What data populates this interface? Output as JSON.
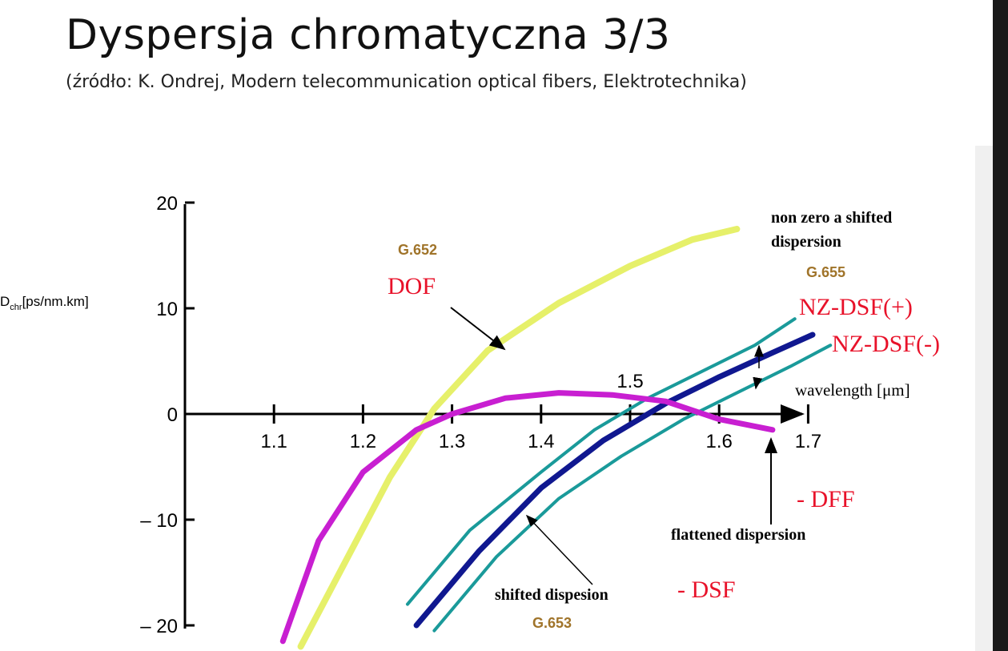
{
  "slide": {
    "title": "Dyspersja chromatyczna 3/3",
    "subtitle": "(źródło: K. Ondrej, Modern telecommunication optical fibers, Elektrotechnika)"
  },
  "chart_data": {
    "type": "line",
    "ylabel_main": "D",
    "ylabel_sub": "chr",
    "ylabel_unit": "[ps/nm.km]",
    "xlabel": "wavelength [μm]",
    "xlim": [
      1.0,
      1.7
    ],
    "ylim": [
      -20,
      20
    ],
    "x_ticks": [
      "1.1",
      "1.2",
      "1.3",
      "1.4",
      "1.6",
      "1.7"
    ],
    "x_tick_above": "1.5",
    "y_ticks": [
      "20",
      "10",
      "0",
      "– 10",
      "– 20"
    ],
    "series": [
      {
        "id": "dof",
        "color": "#e6f06a",
        "x": [
          1.13,
          1.18,
          1.23,
          1.28,
          1.34,
          1.42,
          1.5,
          1.57,
          1.62
        ],
        "y": [
          -22,
          -14,
          -6,
          0.5,
          6,
          10.5,
          14,
          16.5,
          17.5
        ]
      },
      {
        "id": "dff",
        "color": "#c81fd1",
        "x": [
          1.11,
          1.15,
          1.2,
          1.26,
          1.3,
          1.36,
          1.42,
          1.48,
          1.54,
          1.6,
          1.66
        ],
        "y": [
          -21.5,
          -12,
          -5.5,
          -1.5,
          0,
          1.5,
          2,
          1.8,
          1.2,
          -0.5,
          -1.5
        ]
      },
      {
        "id": "nzdsf-plus",
        "color": "#1a9a9a",
        "x": [
          1.25,
          1.32,
          1.4,
          1.46,
          1.52,
          1.58,
          1.64,
          1.685
        ],
        "y": [
          -18,
          -11,
          -5.5,
          -1.5,
          1.5,
          4,
          6.5,
          9
        ]
      },
      {
        "id": "dsf",
        "color": "#101890",
        "x": [
          1.26,
          1.33,
          1.4,
          1.47,
          1.54,
          1.6,
          1.66,
          1.705
        ],
        "y": [
          -20,
          -13,
          -7,
          -2.5,
          1,
          3.5,
          5.8,
          7.5
        ]
      },
      {
        "id": "nzdsf-minus",
        "color": "#1a9a9a",
        "x": [
          1.28,
          1.35,
          1.42,
          1.49,
          1.56,
          1.62,
          1.68,
          1.725
        ],
        "y": [
          -20.5,
          -13.5,
          -8,
          -4,
          -0.5,
          2,
          4.5,
          6.5
        ]
      }
    ],
    "annotations": {
      "g652": "G.652",
      "dof": "DOF",
      "non_zero": "non zero a shifted",
      "non_zero_2": "dispersion",
      "g655": "G.655",
      "nzdsf_plus": "NZ-DSF(+)",
      "nzdsf_minus": "NZ-DSF(-)",
      "dff": "- DFF",
      "flattened": "flattened dispersion",
      "shifted": "shifted dispesion",
      "dsf": "- DSF",
      "g653": "G.653"
    },
    "grid": false,
    "legend": "none"
  }
}
